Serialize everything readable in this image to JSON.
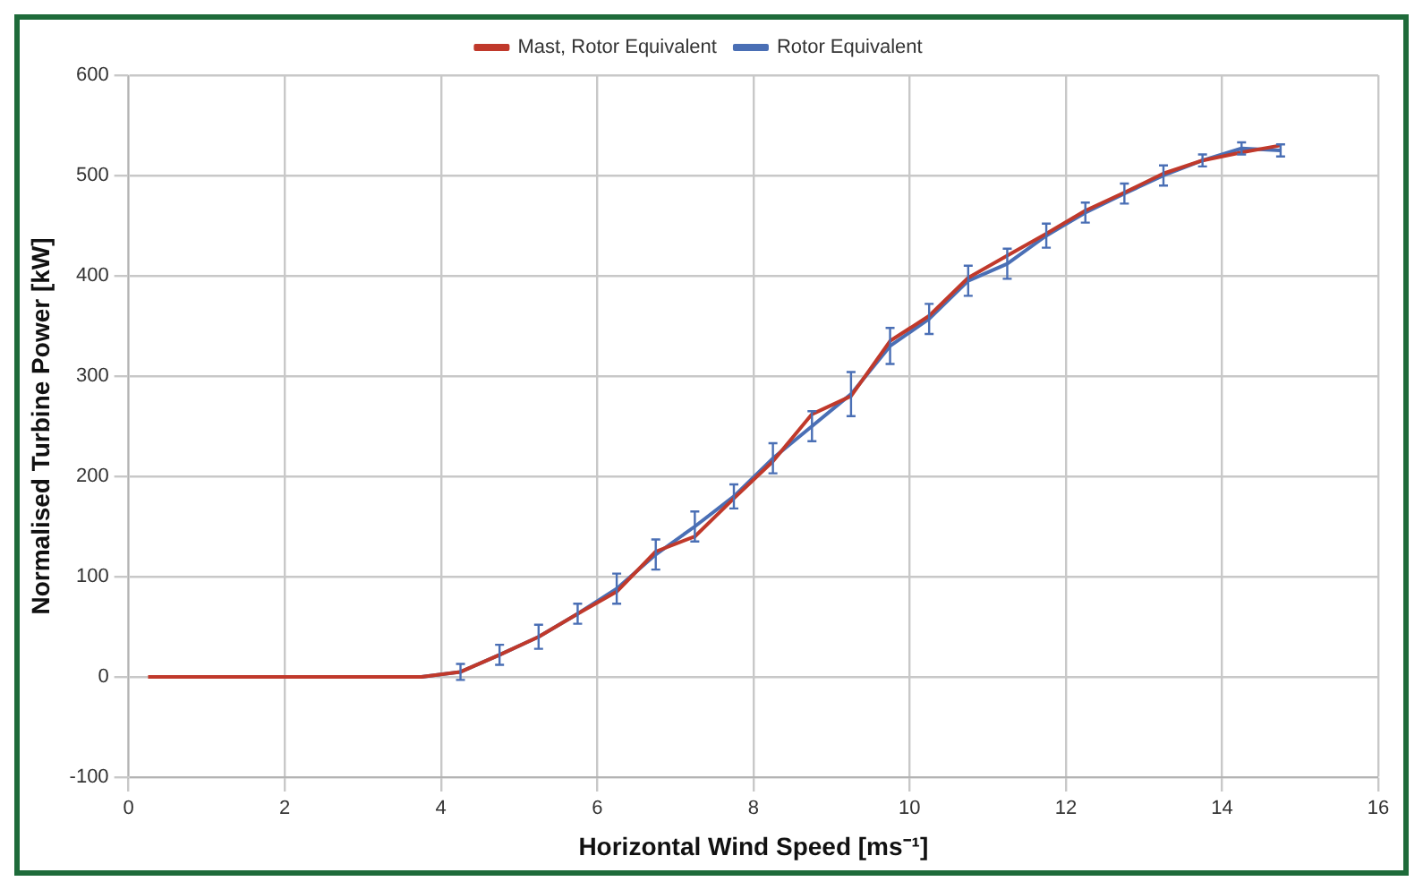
{
  "chart_data": {
    "type": "line",
    "xlabel": "Horizontal Wind Speed [ms⁻¹]",
    "ylabel": "Normalised Turbine Power [kW]",
    "xlim": [
      0,
      16
    ],
    "xticks": [
      0,
      2,
      4,
      6,
      8,
      10,
      12,
      14,
      16
    ],
    "ylim": [
      -100,
      600
    ],
    "yticks": [
      -100,
      0,
      100,
      200,
      300,
      400,
      500,
      600
    ],
    "grid": true,
    "legend": "top",
    "marker": "none",
    "line_style": "solid",
    "series": [
      {
        "name": "Mast, Rotor Equivalent",
        "color": "#c0392b",
        "x": [
          0.25,
          0.75,
          1.25,
          1.75,
          2.25,
          2.75,
          3.25,
          3.75,
          4.25,
          4.75,
          5.25,
          5.75,
          6.25,
          6.75,
          7.25,
          7.75,
          8.25,
          8.75,
          9.25,
          9.75,
          10.25,
          10.75,
          11.25,
          11.75,
          12.25,
          12.75,
          13.25,
          13.75,
          14.25,
          14.75
        ],
        "values": [
          0,
          0,
          0,
          0,
          0,
          0,
          0,
          0,
          5,
          22,
          40,
          63,
          85,
          125,
          140,
          178,
          215,
          262,
          280,
          335,
          360,
          398,
          420,
          442,
          465,
          483,
          502,
          515,
          523,
          530
        ]
      },
      {
        "name": "Rotor Equivalent",
        "color": "#4a6fb5",
        "x": [
          3.75,
          4.25,
          4.75,
          5.25,
          5.75,
          6.25,
          6.75,
          7.25,
          7.75,
          8.25,
          8.75,
          9.25,
          9.75,
          10.25,
          10.75,
          11.25,
          11.75,
          12.25,
          12.75,
          13.25,
          13.75,
          14.25,
          14.75
        ],
        "values": [
          0,
          5,
          22,
          40,
          63,
          88,
          122,
          150,
          180,
          218,
          250,
          282,
          330,
          357,
          395,
          412,
          440,
          463,
          482,
          500,
          515,
          527,
          525
        ],
        "errors": [
          null,
          8,
          10,
          12,
          10,
          15,
          15,
          15,
          12,
          15,
          15,
          22,
          18,
          15,
          15,
          15,
          12,
          10,
          10,
          10,
          6,
          6,
          6
        ]
      }
    ]
  }
}
